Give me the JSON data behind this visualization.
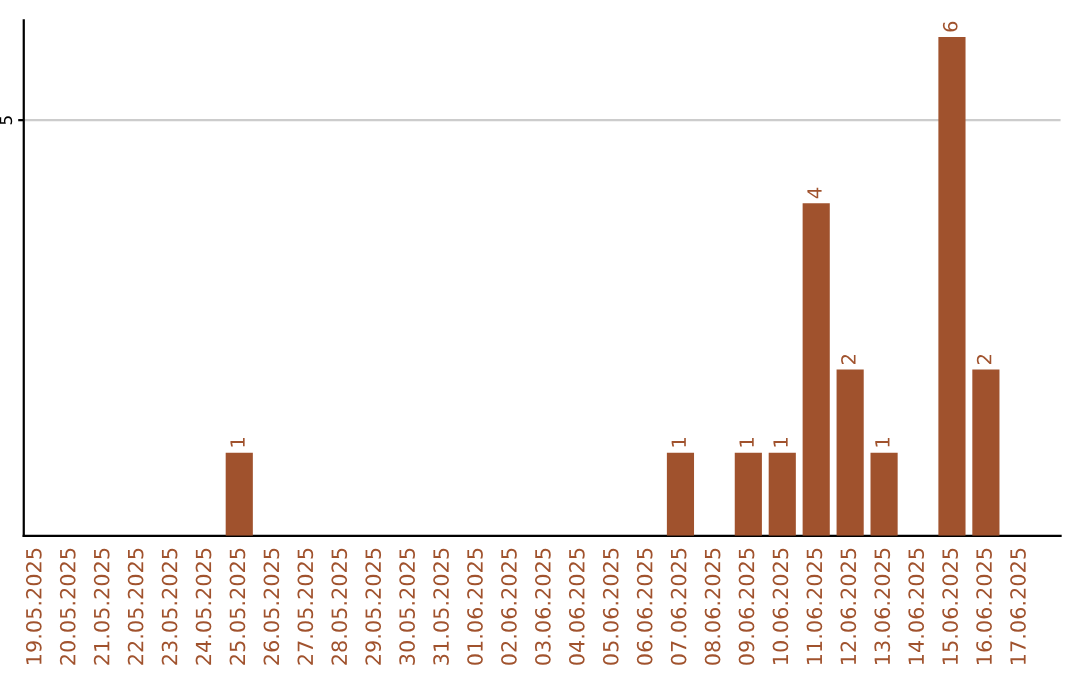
{
  "chart_data": {
    "type": "bar",
    "categories": [
      "19.05.2025",
      "20.05.2025",
      "21.05.2025",
      "22.05.2025",
      "23.05.2025",
      "24.05.2025",
      "25.05.2025",
      "26.05.2025",
      "27.05.2025",
      "28.05.2025",
      "29.05.2025",
      "30.05.2025",
      "31.05.2025",
      "01.06.2025",
      "02.06.2025",
      "03.06.2025",
      "04.06.2025",
      "05.06.2025",
      "06.06.2025",
      "07.06.2025",
      "08.06.2025",
      "09.06.2025",
      "10.06.2025",
      "11.06.2025",
      "12.06.2025",
      "13.06.2025",
      "14.06.2025",
      "15.06.2025",
      "16.06.2025",
      "17.06.2025"
    ],
    "values": [
      0,
      0,
      0,
      0,
      0,
      0,
      1,
      0,
      0,
      0,
      0,
      0,
      0,
      0,
      0,
      0,
      0,
      0,
      0,
      1,
      0,
      1,
      1,
      4,
      2,
      1,
      0,
      6,
      2,
      0
    ],
    "value_labels": [
      null,
      null,
      null,
      null,
      null,
      null,
      "1",
      null,
      null,
      null,
      null,
      null,
      null,
      null,
      null,
      null,
      null,
      null,
      null,
      "1",
      null,
      "1",
      "1",
      "4",
      "2",
      "1",
      null,
      "6",
      "2",
      null
    ],
    "color": "#a0522d",
    "ylim": [
      0,
      6.2
    ],
    "yticks": [
      5
    ],
    "grid": "y",
    "legend": false
  }
}
